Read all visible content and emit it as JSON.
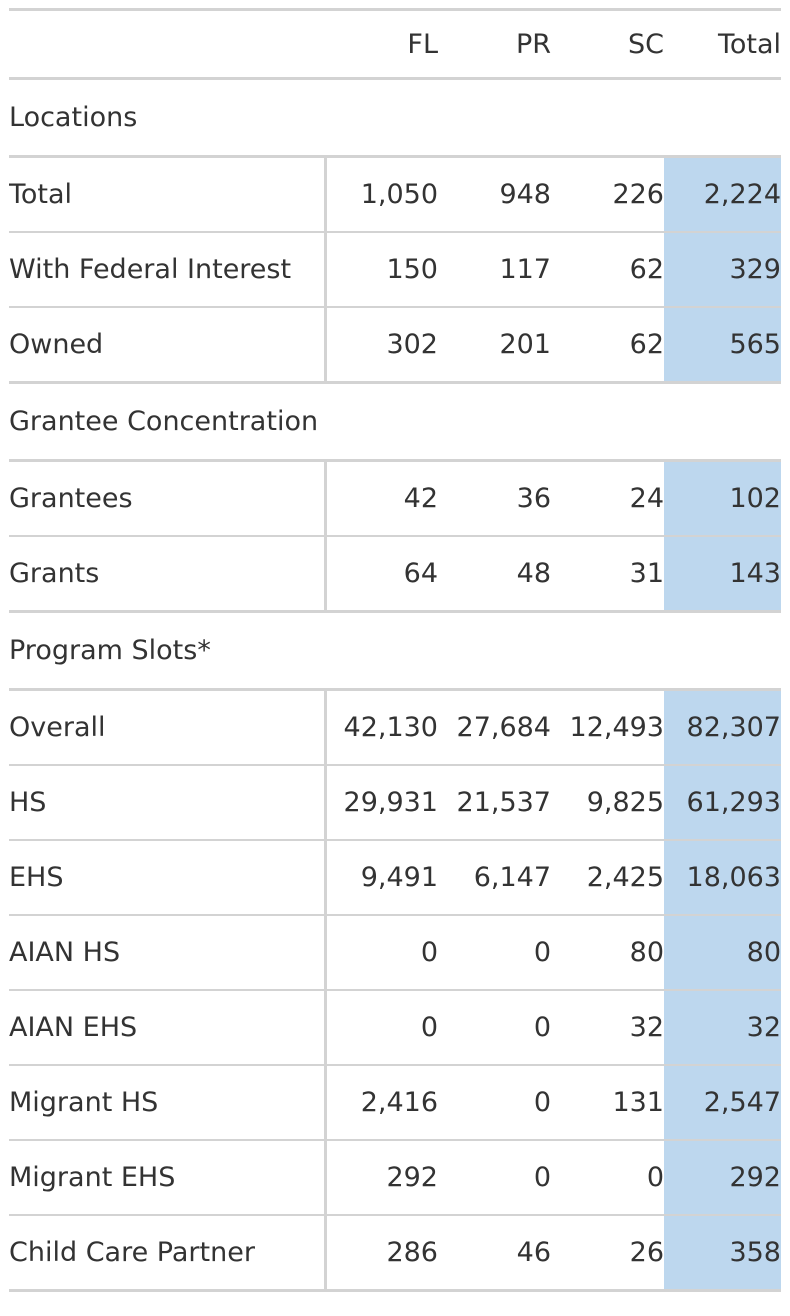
{
  "table": {
    "columns": [
      "",
      "FL",
      "PR",
      "SC",
      "Total"
    ],
    "groups": [
      {
        "title": "Locations",
        "note": "",
        "rows": [
          {
            "label": "Total",
            "FL": "1,050",
            "PR": "948",
            "SC": "226",
            "Total": "2,224"
          },
          {
            "label": "With Federal Interest",
            "FL": "150",
            "PR": "117",
            "SC": "62",
            "Total": "329"
          },
          {
            "label": "Owned",
            "FL": "302",
            "PR": "201",
            "SC": "62",
            "Total": "565"
          }
        ]
      },
      {
        "title": "Grantee Concentration",
        "note": "",
        "rows": [
          {
            "label": "Grantees",
            "FL": "42",
            "PR": "36",
            "SC": "24",
            "Total": "102"
          },
          {
            "label": "Grants",
            "FL": "64",
            "PR": "48",
            "SC": "31",
            "Total": "143"
          }
        ]
      },
      {
        "title": "Program Slots",
        "note": "*",
        "rows": [
          {
            "label": "Overall",
            "FL": "42,130",
            "PR": "27,684",
            "SC": "12,493",
            "Total": "82,307"
          },
          {
            "label": "HS",
            "FL": "29,931",
            "PR": "21,537",
            "SC": "9,825",
            "Total": "61,293"
          },
          {
            "label": "EHS",
            "FL": "9,491",
            "PR": "6,147",
            "SC": "2,425",
            "Total": "18,063"
          },
          {
            "label": "AIAN HS",
            "FL": "0",
            "PR": "0",
            "SC": "80",
            "Total": "80"
          },
          {
            "label": "AIAN EHS",
            "FL": "0",
            "PR": "0",
            "SC": "32",
            "Total": "32"
          },
          {
            "label": "Migrant HS",
            "FL": "2,416",
            "PR": "0",
            "SC": "131",
            "Total": "2,547"
          },
          {
            "label": "Migrant EHS",
            "FL": "292",
            "PR": "0",
            "SC": "0",
            "Total": "292"
          },
          {
            "label": "Child Care Partner",
            "FL": "286",
            "PR": "46",
            "SC": "26",
            "Total": "358"
          }
        ]
      }
    ],
    "colors": {
      "total_highlight": "#bdd7ee",
      "rule": "#d3d3d3",
      "text": "#333333"
    }
  }
}
